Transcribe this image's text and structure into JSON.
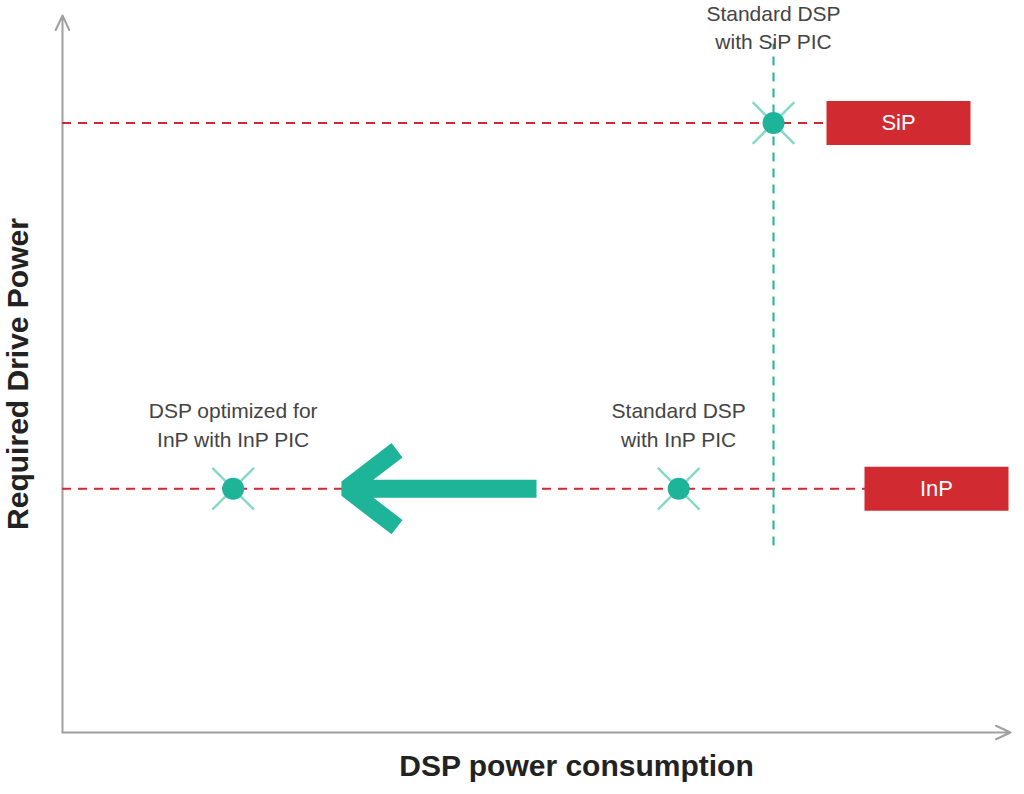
{
  "chart_data": {
    "type": "scatter",
    "x_label": "DSP power consumption",
    "y_label": "Required Drive Power",
    "xlim": [
      0,
      100
    ],
    "ylim": [
      0,
      100
    ],
    "xticks": [],
    "yticks": [],
    "tick_labels": false,
    "grid": false,
    "marker": "x-circle",
    "color": "#1db49a",
    "points": [
      {
        "label": "Standard DSP\nwith SiP PIC",
        "x": 75,
        "y": 85
      },
      {
        "label": "Standard DSP\nwith InP PIC",
        "x": 65,
        "y": 34
      },
      {
        "label": "DSP optimized for\nInP with InP PIC",
        "x": 18,
        "y": 34
      }
    ],
    "levels": [
      {
        "label": "SiP",
        "y": 85,
        "color": "#d12a31",
        "line_style": "dashed"
      },
      {
        "label": "InP",
        "y": 34,
        "color": "#d12a31",
        "line_style": "dashed"
      }
    ],
    "guide_line": {
      "x": 75,
      "y": [
        26,
        96
      ],
      "line_style": "dashed"
    },
    "arrow": {
      "x": [
        50,
        30
      ],
      "y": 34
    }
  }
}
